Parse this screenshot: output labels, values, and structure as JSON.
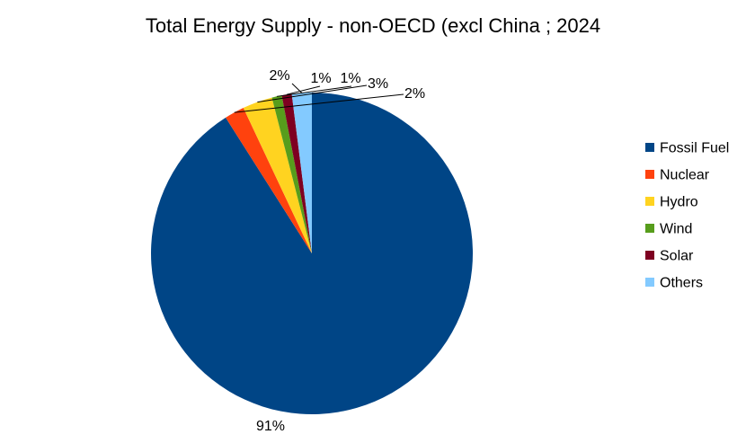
{
  "chart_data": {
    "type": "pie",
    "title": "Total Energy Supply - non-OECD (excl China ; 2024",
    "legend_position": "right",
    "slices": [
      {
        "name": "Fossil Fuel",
        "value": 91,
        "label": "91%",
        "color": "#004586"
      },
      {
        "name": "Nuclear",
        "value": 2,
        "label": "2%",
        "color": "#ff420e"
      },
      {
        "name": "Hydro",
        "value": 3,
        "label": "3%",
        "color": "#ffd320"
      },
      {
        "name": "Wind",
        "value": 1,
        "label": "1%",
        "color": "#579d1c"
      },
      {
        "name": "Solar",
        "value": 1,
        "label": "1%",
        "color": "#7e0021"
      },
      {
        "name": "Others",
        "value": 2,
        "label": "2%",
        "color": "#83caff"
      }
    ]
  }
}
